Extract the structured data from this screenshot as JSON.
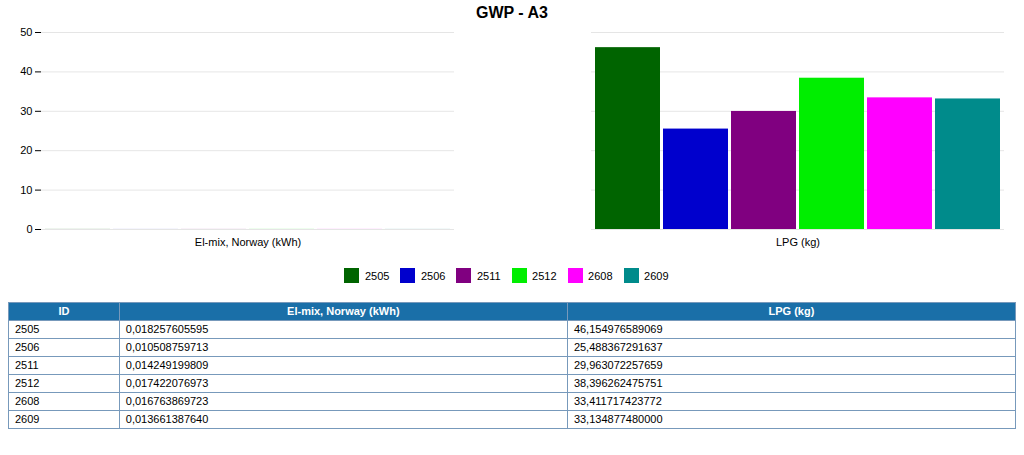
{
  "chart_data": {
    "type": "bar",
    "title": "GWP - A3",
    "categories": [
      "El-mix, Norway (kWh)",
      "LPG (kg)"
    ],
    "series": [
      {
        "name": "2505",
        "color": "#006400",
        "values": [
          0.018257605595,
          46.154976589069
        ]
      },
      {
        "name": "2506",
        "color": "#0000cd",
        "values": [
          0.010508759713,
          25.488367291637
        ]
      },
      {
        "name": "2511",
        "color": "#800080",
        "values": [
          0.014249199809,
          29.963072257659
        ]
      },
      {
        "name": "2512",
        "color": "#00ee00",
        "values": [
          0.017422076973,
          38.396262475751
        ]
      },
      {
        "name": "2608",
        "color": "#ff00ff",
        "values": [
          0.016763869723,
          33.411717423772
        ]
      },
      {
        "name": "2609",
        "color": "#008b8b",
        "values": [
          0.01366138764,
          33.13487748
        ]
      }
    ],
    "ylim": [
      0,
      50
    ],
    "yticks": [
      0,
      10,
      20,
      30,
      40,
      50
    ],
    "grid": true,
    "legend": "bottom",
    "table": {
      "columns": [
        "ID",
        "El-mix, Norway (kWh)",
        "LPG (kg)"
      ],
      "rows": [
        [
          "2505",
          "0,018257605595",
          "46,154976589069"
        ],
        [
          "2506",
          "0,010508759713",
          "25,488367291637"
        ],
        [
          "2511",
          "0,014249199809",
          "29,963072257659"
        ],
        [
          "2512",
          "0,017422076973",
          "38,396262475751"
        ],
        [
          "2608",
          "0,016763869723",
          "33,411717423772"
        ],
        [
          "2609",
          "0,013661387640",
          "33,134877480000"
        ]
      ]
    }
  }
}
